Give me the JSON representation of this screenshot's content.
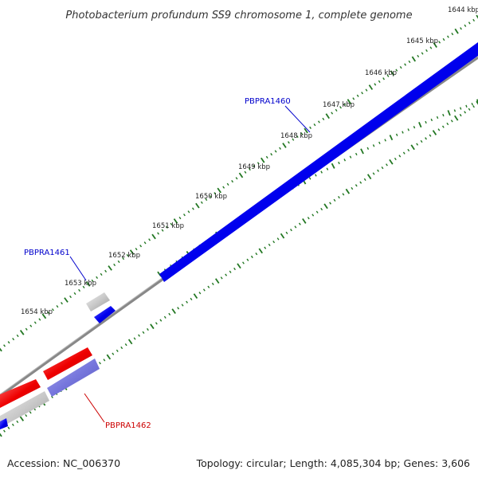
{
  "title": "Photobacterium profundum SS9 chromosome 1, complete genome",
  "footer": {
    "accession": "Accession: NC_006370",
    "summary": "Topology: circular; Length: 4,085,304 bp; Genes: 3,606"
  },
  "ticks": [
    "1644 kbp",
    "1645 kbp",
    "1646 kbp",
    "1647 kbp",
    "1648 kbp",
    "1649 kbp",
    "1650 kbp",
    "1651 kbp",
    "1652 kbp",
    "1653 kbp",
    "1654 kbp"
  ],
  "genes": [
    {
      "name": "PBPRA1460",
      "color": "#0000cc"
    },
    {
      "name": "PBPRA1461",
      "color": "#0000cc"
    },
    {
      "name": "PBPRA1462",
      "color": "#cc0000"
    }
  ],
  "colors": {
    "forward": "#0000ee",
    "reverse": "#ee0000",
    "hit_grey": "#c0c0c0",
    "hit_purple": "#7777dd",
    "backbone": "#808080",
    "tick": "#227722"
  }
}
